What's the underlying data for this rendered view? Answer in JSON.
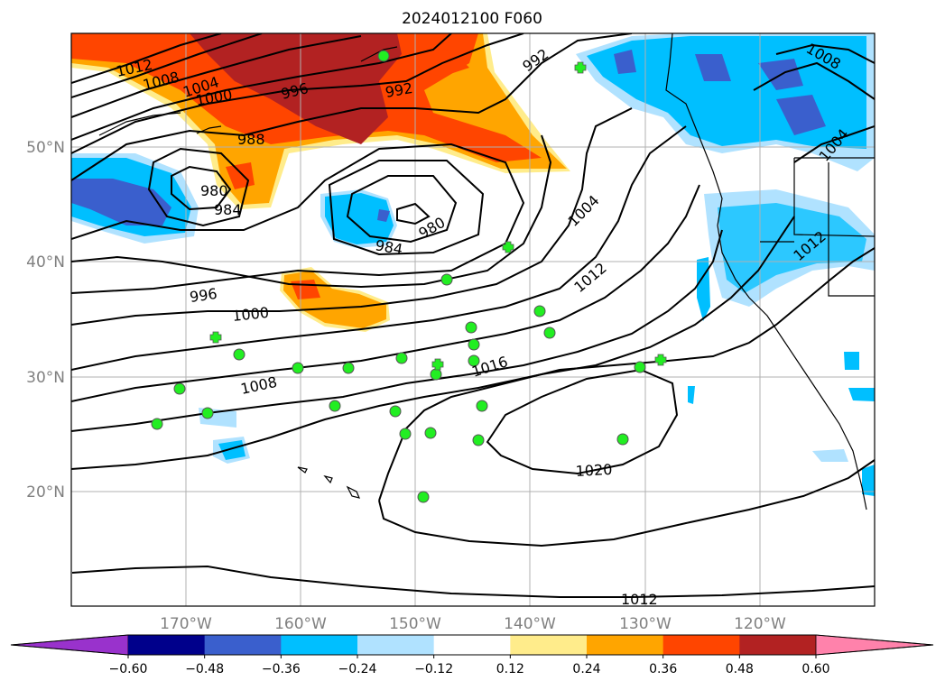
{
  "title": "2024012100 F060",
  "lat_labels": [
    "50°N",
    "40°N",
    "30°N",
    "20°N"
  ],
  "lon_labels": [
    "170°W",
    "160°W",
    "150°W",
    "140°W",
    "130°W",
    "120°W"
  ],
  "colorbar": {
    "colors": [
      "#9932cc",
      "#00008b",
      "#3a5fcd",
      "#00bfff",
      "#b0e2ff",
      "#ffffff",
      "#ffec8b",
      "#ffa500",
      "#ff4500",
      "#b22222",
      "#ff82ab"
    ],
    "tick_labels": [
      "−0.60",
      "−0.48",
      "−0.36",
      "−0.24",
      "−0.12",
      "0.12",
      "0.24",
      "0.36",
      "0.48",
      "0.60"
    ]
  },
  "isobar_labels": {
    "i1012a": "1012",
    "i1008a": "1008",
    "i1004a": "1004",
    "i1000a": "1000",
    "i996a": "996",
    "i992a": "992",
    "i988": "988",
    "i980a": "980",
    "i984a": "984",
    "i984b": "984",
    "i980b": "980",
    "i996b": "996",
    "i1000b": "1000",
    "i1008b": "1008",
    "i1004b": "1004",
    "i1012b": "1012",
    "i1016": "1016",
    "i1020": "1020",
    "i1012c": "1012",
    "i992b": "992",
    "i1008c": "1008",
    "i1004c": "1004",
    "i1012d": "1012"
  }
}
